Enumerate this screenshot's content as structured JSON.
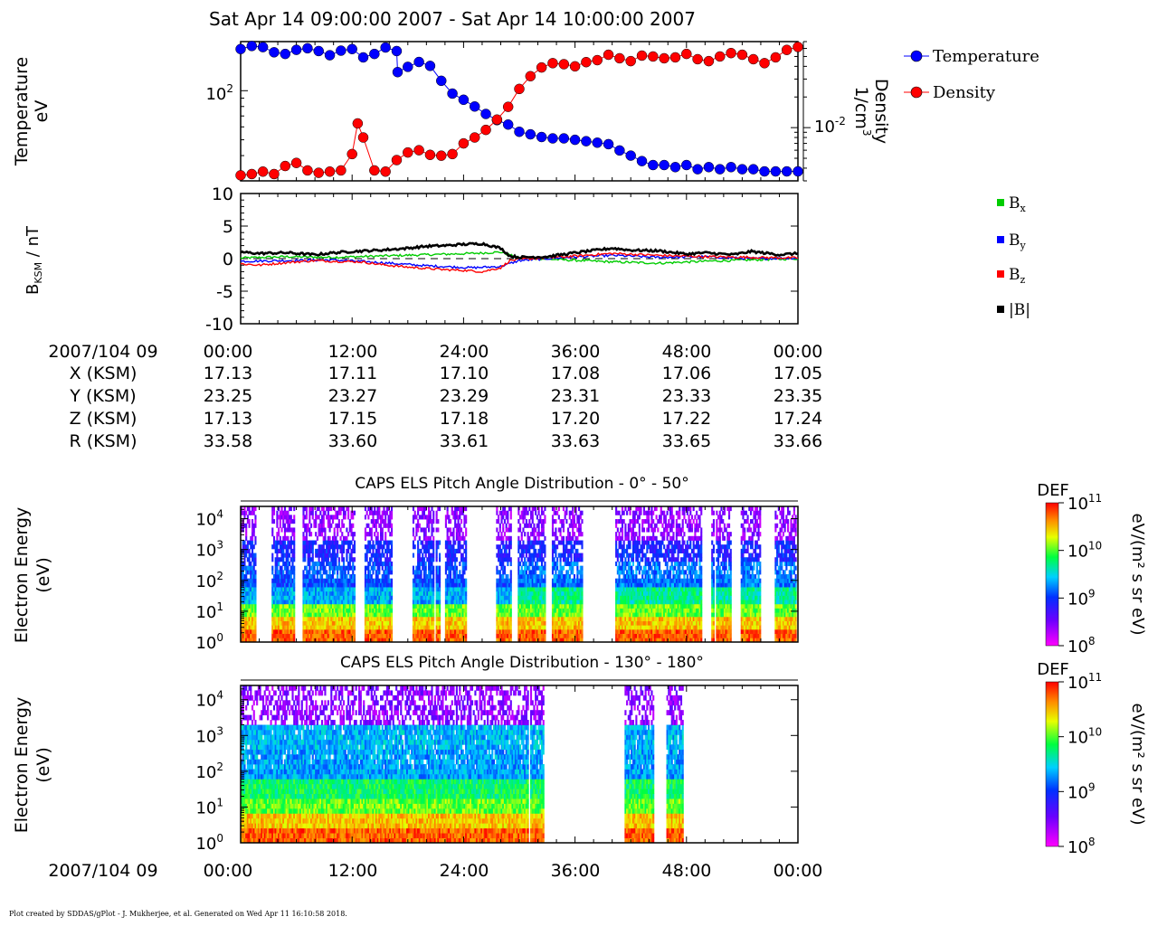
{
  "plot_title": "Sat Apr 14 09:00:00 2007 - Sat Apr 14 10:00:00 2007",
  "footer": "Plot created by SDDAS/gPlot - J. Mukherjee, et al.  Generated on Wed Apr 11 16:10:58 2018.",
  "colors": {
    "temperature": "#0000ff",
    "density": "#ff0000",
    "bx": "#00cc00",
    "by": "#0000ff",
    "bz": "#ff0000",
    "bmag": "#000000"
  },
  "ephemeris": {
    "header_label": "2007/104 09",
    "times": [
      "00:00",
      "12:00",
      "24:00",
      "36:00",
      "48:00",
      "00:00"
    ],
    "rows": [
      {
        "label": "X (KSM)",
        "values": [
          "17.13",
          "17.11",
          "17.10",
          "17.08",
          "17.06",
          "17.05"
        ]
      },
      {
        "label": "Y (KSM)",
        "values": [
          "23.25",
          "23.27",
          "23.29",
          "23.31",
          "23.33",
          "23.35"
        ]
      },
      {
        "label": "Z (KSM)",
        "values": [
          "17.13",
          "17.15",
          "17.18",
          "17.20",
          "17.22",
          "17.24"
        ]
      },
      {
        "label": "R (KSM)",
        "values": [
          "33.58",
          "33.60",
          "33.61",
          "33.63",
          "33.65",
          "33.66"
        ]
      }
    ]
  },
  "bottom_axis": {
    "label": "2007/104 09",
    "ticks": [
      "00:00",
      "12:00",
      "24:00",
      "36:00",
      "48:00",
      "00:00"
    ]
  },
  "chart_data": [
    {
      "type": "scatter",
      "panel": "moments",
      "x_unit": "minutes after 09:00",
      "xlim": [
        0,
        60
      ],
      "left_axis": {
        "label_line1": "Temperature",
        "label_line2": "eV",
        "scale": "log",
        "ticks": [
          {
            "value": 100,
            "mantissa": "10",
            "exp": "2"
          }
        ]
      },
      "right_axis": {
        "label_line1": "Density",
        "label_line2": "1/cm",
        "label_sup": "3",
        "scale": "log",
        "ticks": [
          {
            "value": 0.01,
            "mantissa": "10",
            "exp": "-2"
          }
        ]
      },
      "legend": [
        "Temperature",
        "Density"
      ],
      "series": [
        {
          "name": "Temperature",
          "axis": "left",
          "ylim": [
            28,
            200
          ],
          "x": [
            0,
            1.2,
            2.4,
            3.6,
            4.8,
            6,
            7.2,
            8.4,
            9.6,
            10.8,
            12,
            13.2,
            14.4,
            15.6,
            16.8,
            16.9,
            18,
            19.2,
            20.4,
            21.6,
            22.8,
            24,
            25.2,
            26.4,
            27.6,
            28.8,
            30,
            31.2,
            32.4,
            33.6,
            34.8,
            36,
            37.2,
            38.4,
            39.6,
            40.8,
            42,
            43.2,
            44.4,
            45.6,
            46.8,
            48,
            49.2,
            50.4,
            51.6,
            52.8,
            54,
            55.2,
            56.4,
            57.6,
            58.8,
            60
          ],
          "values": [
            180,
            188,
            185,
            172,
            168,
            178,
            182,
            175,
            165,
            176,
            180,
            160,
            168,
            184,
            175,
            130,
            140,
            150,
            142,
            115,
            96,
            88,
            80,
            72,
            66,
            62,
            56,
            54,
            52,
            51,
            51,
            50,
            49,
            48,
            47,
            43,
            40,
            37,
            35,
            35,
            34,
            35,
            33,
            34,
            33,
            34,
            33,
            33,
            32,
            32,
            32,
            32
          ]
        },
        {
          "name": "Density",
          "axis": "right",
          "ylim": [
            0.003,
            0.07
          ],
          "x": [
            0,
            1.2,
            2.4,
            3.6,
            4.8,
            6,
            7.2,
            8.4,
            9.6,
            10.8,
            12,
            12.6,
            13.2,
            14.4,
            15.6,
            16.8,
            18,
            19.2,
            20.4,
            21.6,
            22.8,
            24,
            25.2,
            26.4,
            27.6,
            28.8,
            30,
            31.2,
            32.4,
            33.6,
            34.8,
            36,
            37.2,
            38.4,
            39.6,
            40.8,
            42,
            43.2,
            44.4,
            45.6,
            46.8,
            48,
            49.2,
            50.4,
            51.6,
            52.8,
            54,
            55.2,
            56.4,
            57.6,
            58.8,
            60
          ],
          "values": [
            0.0034,
            0.0035,
            0.0037,
            0.0035,
            0.0042,
            0.0045,
            0.0038,
            0.0036,
            0.0037,
            0.0038,
            0.0055,
            0.011,
            0.008,
            0.0038,
            0.0037,
            0.0048,
            0.0057,
            0.006,
            0.0054,
            0.0053,
            0.0055,
            0.007,
            0.008,
            0.0095,
            0.012,
            0.016,
            0.024,
            0.032,
            0.039,
            0.043,
            0.042,
            0.04,
            0.044,
            0.046,
            0.052,
            0.048,
            0.045,
            0.051,
            0.05,
            0.048,
            0.049,
            0.053,
            0.047,
            0.045,
            0.05,
            0.054,
            0.052,
            0.047,
            0.043,
            0.049,
            0.058,
            0.062
          ]
        }
      ]
    },
    {
      "type": "line",
      "panel": "magnetic_field",
      "x_unit": "minutes after 09:00",
      "xlim": [
        0,
        60
      ],
      "ylabel_main": "B",
      "ylabel_sub": "KSM",
      "ylabel_tail": " / nT",
      "ylim": [
        -10,
        10
      ],
      "yticks": [
        "10",
        "5",
        "0",
        "-5",
        "-10"
      ],
      "ytick_values": [
        10,
        5,
        0,
        -5,
        -10
      ],
      "series": [
        {
          "name": "B",
          "sub": "x",
          "x": [
            0,
            5,
            10,
            15,
            20,
            25,
            28,
            30,
            35,
            40,
            45,
            50,
            55,
            60
          ],
          "values": [
            0.1,
            0.3,
            0.2,
            0.4,
            0.6,
            0.8,
            1.0,
            0.1,
            -0.2,
            -0.5,
            -0.7,
            -0.4,
            -0.2,
            0.0
          ]
        },
        {
          "name": "B",
          "sub": "y",
          "x": [
            0,
            5,
            10,
            15,
            20,
            25,
            28,
            30,
            35,
            40,
            45,
            50,
            55,
            60
          ],
          "values": [
            -0.4,
            -0.3,
            -0.2,
            -0.6,
            -1.1,
            -1.4,
            -1.2,
            -0.3,
            0.2,
            0.5,
            0.2,
            0.3,
            0.0,
            0.1
          ]
        },
        {
          "name": "B",
          "sub": "z",
          "x": [
            0,
            2,
            5,
            8,
            10,
            13,
            15,
            18,
            20,
            22,
            24,
            26,
            28,
            29,
            30,
            35,
            40,
            45,
            50,
            55,
            60
          ],
          "values": [
            -0.8,
            -1.0,
            -0.6,
            -0.3,
            -0.4,
            -0.5,
            -0.9,
            -1.3,
            -1.5,
            -1.7,
            -1.8,
            -2.0,
            -1.4,
            -0.3,
            -0.1,
            0.3,
            0.8,
            0.5,
            0.3,
            0.2,
            0.1
          ]
        },
        {
          "name": "|B|",
          "sub": "",
          "x": [
            0,
            2,
            5,
            8,
            10,
            12,
            15,
            18,
            20,
            22,
            24,
            26,
            28,
            29,
            30,
            33,
            36,
            40,
            42,
            45,
            48,
            50,
            53,
            55,
            58,
            60
          ],
          "values": [
            1.0,
            0.8,
            0.9,
            0.6,
            0.9,
            1.1,
            1.3,
            1.6,
            1.9,
            2.0,
            2.2,
            2.3,
            1.6,
            0.4,
            0.2,
            0.3,
            0.9,
            1.6,
            1.3,
            1.2,
            0.7,
            0.9,
            0.6,
            1.1,
            0.6,
            0.8
          ]
        }
      ]
    },
    {
      "type": "heatmap",
      "panel": "els_pad_0_50",
      "title": "CAPS ELS Pitch Angle Distribution - 0° - 50°",
      "ylabel_line1": "Electron Energy",
      "ylabel_line2": "(eV)",
      "yscale": "log",
      "ylim": [
        1,
        25000
      ],
      "ytick_exps": [
        "0",
        "1",
        "2",
        "3",
        "4"
      ],
      "x_unit": "minutes after 09:00",
      "xlim": [
        0,
        60
      ],
      "data_intervals": [
        [
          0,
          1.6
        ],
        [
          3.2,
          5.8
        ],
        [
          6.6,
          12.2
        ],
        [
          13.3,
          16.3
        ],
        [
          18.5,
          20.8
        ],
        [
          21.0,
          21.4
        ],
        [
          22.0,
          24.2
        ],
        [
          27.5,
          29.1
        ],
        [
          29.8,
          32.8
        ],
        [
          33.5,
          36.8
        ],
        [
          40.2,
          49.6
        ],
        [
          50.6,
          50.9
        ],
        [
          51.1,
          52.8
        ],
        [
          53.8,
          56.0
        ],
        [
          57.5,
          59.7
        ]
      ],
      "colorbar": {
        "title": "DEF",
        "unit": "eV/(m² s sr eV)",
        "tick_exps": [
          "8",
          "9",
          "10",
          "11"
        ],
        "range": [
          100000000,
          100000000000
        ]
      }
    },
    {
      "type": "heatmap",
      "panel": "els_pad_130_180",
      "title": "CAPS ELS Pitch Angle Distribution - 130° - 180°",
      "ylabel_line1": "Electron Energy",
      "ylabel_line2": "(eV)",
      "yscale": "log",
      "ylim": [
        1,
        25000
      ],
      "ytick_exps": [
        "0",
        "1",
        "2",
        "3",
        "4"
      ],
      "x_unit": "minutes after 09:00",
      "xlim": [
        0,
        60
      ],
      "data_intervals": [
        [
          0,
          30.9
        ],
        [
          31.1,
          32.6
        ],
        [
          41.3,
          44.4
        ],
        [
          45.7,
          47.6
        ]
      ],
      "colorbar": {
        "title": "DEF",
        "unit": "eV/(m² s sr eV)",
        "tick_exps": [
          "8",
          "9",
          "10",
          "11"
        ],
        "range": [
          100000000,
          100000000000
        ]
      }
    }
  ]
}
